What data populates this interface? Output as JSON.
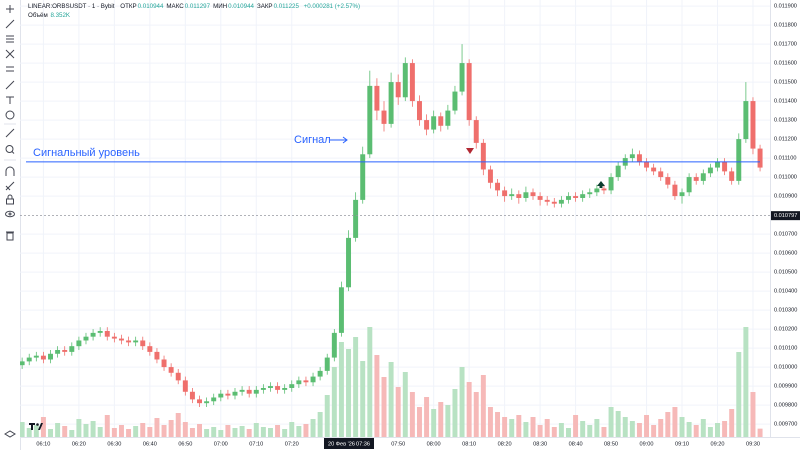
{
  "chart_data": {
    "type": "candlestick",
    "legend": {
      "symbol": "LINEAR:ORBSUSDT · 1 · Bybit",
      "items": [
        {
          "label": "ОТКР",
          "value": 0.010944
        },
        {
          "label": "МАКС",
          "value": 0.011297
        },
        {
          "label": "МИН",
          "value": 0.010944
        },
        {
          "label": "ЗАКР",
          "value": 0.011225
        }
      ],
      "change": "+0.000281 (+2.57%)",
      "volume_label": "Объём",
      "volume_value": "8.352K"
    },
    "annotations": {
      "signal": "Сигнал",
      "level_label": "Сигнальный уровень",
      "level": 0.01108
    },
    "crosshair_date": "20 Фев '26",
    "crosshair_time": "07:36",
    "last_price": 0.010797,
    "up_color": "#5bbd72",
    "down_color": "#ef6f6c",
    "volume_up_color": "#b8e2c3",
    "volume_down_color": "#f6b9b8",
    "level_color": "#2962ff",
    "grid": true,
    "open": [
      0.01001,
      0.01003,
      0.01005,
      0.01006,
      0.01004,
      0.01007,
      0.01009,
      0.01008,
      0.01011,
      0.01014,
      0.01016,
      0.01018,
      0.01019,
      0.01016,
      0.01015,
      0.01014,
      0.01013,
      0.01014,
      0.01011,
      0.01008,
      0.01004,
      0.01,
      0.00997,
      0.00993,
      0.00987,
      0.00983,
      0.00981,
      0.00982,
      0.00984,
      0.00986,
      0.00985,
      0.00987,
      0.00988,
      0.00986,
      0.00988,
      0.00989,
      0.0099,
      0.00988,
      0.00989,
      0.00991,
      0.00993,
      0.00992,
      0.00995,
      0.00998,
      0.01005,
      0.01018,
      0.01042,
      0.01068,
      0.01088,
      0.01112,
      0.01148,
      0.01135,
      0.01128,
      0.0115,
      0.01142,
      0.0116,
      0.0114,
      0.0113,
      0.01125,
      0.01132,
      0.01127,
      0.01135,
      0.01145,
      0.0116,
      0.0113,
      0.01118,
      0.01104,
      0.01097,
      0.01093,
      0.0109,
      0.01091,
      0.01089,
      0.01092,
      0.0109,
      0.01088,
      0.01087,
      0.01086,
      0.01088,
      0.0109,
      0.01089,
      0.01091,
      0.01092,
      0.01094,
      0.01093,
      0.011,
      0.01106,
      0.0111,
      0.01112,
      0.01108,
      0.01105,
      0.01103,
      0.011,
      0.01096,
      0.0109,
      0.01092,
      0.011,
      0.01098,
      0.01102,
      0.01105,
      0.01108,
      0.01103,
      0.01098,
      0.0112,
      0.0114,
      0.01115
    ],
    "high": [
      0.01005,
      0.01007,
      0.01008,
      0.01008,
      0.01009,
      0.01011,
      0.01011,
      0.01013,
      0.01016,
      0.01018,
      0.0102,
      0.01021,
      0.01021,
      0.01018,
      0.01017,
      0.01016,
      0.01016,
      0.01016,
      0.01013,
      0.0101,
      0.01006,
      0.01002,
      0.00999,
      0.00995,
      0.00989,
      0.00985,
      0.00984,
      0.00986,
      0.00988,
      0.00988,
      0.00989,
      0.0099,
      0.0099,
      0.0099,
      0.00991,
      0.00992,
      0.00992,
      0.00991,
      0.00993,
      0.00995,
      0.00995,
      0.00997,
      0.01,
      0.01007,
      0.0102,
      0.01045,
      0.01072,
      0.01092,
      0.01116,
      0.01156,
      0.01152,
      0.0114,
      0.01155,
      0.01154,
      0.01163,
      0.01162,
      0.01143,
      0.01133,
      0.01135,
      0.01134,
      0.01138,
      0.01148,
      0.0117,
      0.01162,
      0.01132,
      0.0112,
      0.01106,
      0.01099,
      0.01095,
      0.01094,
      0.01093,
      0.01095,
      0.01094,
      0.01092,
      0.0109,
      0.01089,
      0.0109,
      0.01092,
      0.01092,
      0.01093,
      0.01094,
      0.01096,
      0.01096,
      0.01102,
      0.01108,
      0.01112,
      0.01115,
      0.01114,
      0.0111,
      0.01107,
      0.01105,
      0.01102,
      0.01098,
      0.01094,
      0.01102,
      0.01102,
      0.01104,
      0.01107,
      0.0111,
      0.0111,
      0.01105,
      0.01123,
      0.0115,
      0.01142,
      0.01117
    ],
    "low": [
      0.00999,
      0.01001,
      0.01003,
      0.01002,
      0.01002,
      0.01005,
      0.01006,
      0.01006,
      0.01009,
      0.01012,
      0.01014,
      0.01016,
      0.01014,
      0.01013,
      0.01012,
      0.01011,
      0.01011,
      0.01009,
      0.01006,
      0.01002,
      0.00998,
      0.00995,
      0.00991,
      0.00985,
      0.00981,
      0.00979,
      0.00979,
      0.0098,
      0.00982,
      0.00983,
      0.00983,
      0.00985,
      0.00984,
      0.00984,
      0.00986,
      0.00987,
      0.00986,
      0.00986,
      0.00987,
      0.00989,
      0.0099,
      0.0099,
      0.00993,
      0.00996,
      0.01003,
      0.01016,
      0.0104,
      0.01066,
      0.01086,
      0.0111,
      0.0113,
      0.01124,
      0.01126,
      0.01138,
      0.0114,
      0.01137,
      0.01127,
      0.01122,
      0.01123,
      0.01124,
      0.01125,
      0.01133,
      0.01143,
      0.01127,
      0.01115,
      0.01101,
      0.01094,
      0.0109,
      0.01087,
      0.01088,
      0.01086,
      0.01087,
      0.01088,
      0.01085,
      0.01085,
      0.01084,
      0.01084,
      0.01086,
      0.01087,
      0.01087,
      0.01089,
      0.0109,
      0.01091,
      0.01091,
      0.01098,
      0.01104,
      0.01108,
      0.01106,
      0.01103,
      0.01101,
      0.01098,
      0.01094,
      0.01088,
      0.01086,
      0.0109,
      0.01096,
      0.01096,
      0.011,
      0.01103,
      0.01101,
      0.01096,
      0.01096,
      0.01118,
      0.01112,
      0.01103
    ],
    "close": [
      0.01003,
      0.01005,
      0.01006,
      0.01004,
      0.01007,
      0.01009,
      0.01008,
      0.01011,
      0.01014,
      0.01016,
      0.01018,
      0.01019,
      0.01016,
      0.01015,
      0.01014,
      0.01013,
      0.01014,
      0.01011,
      0.01008,
      0.01004,
      0.01,
      0.00997,
      0.00993,
      0.00987,
      0.00983,
      0.00981,
      0.00982,
      0.00984,
      0.00986,
      0.00985,
      0.00987,
      0.00988,
      0.00986,
      0.00988,
      0.00989,
      0.0099,
      0.00988,
      0.00989,
      0.00991,
      0.00993,
      0.00992,
      0.00995,
      0.00998,
      0.01005,
      0.01018,
      0.01042,
      0.01068,
      0.01088,
      0.01112,
      0.01148,
      0.01135,
      0.01128,
      0.0115,
      0.01142,
      0.0116,
      0.0114,
      0.0113,
      0.01125,
      0.01132,
      0.01127,
      0.01135,
      0.01145,
      0.0116,
      0.0113,
      0.01118,
      0.01104,
      0.01097,
      0.01093,
      0.0109,
      0.01091,
      0.01089,
      0.01092,
      0.0109,
      0.01088,
      0.01087,
      0.01086,
      0.01088,
      0.0109,
      0.01089,
      0.01091,
      0.01092,
      0.01094,
      0.01093,
      0.011,
      0.01106,
      0.0111,
      0.01112,
      0.01108,
      0.01105,
      0.01103,
      0.011,
      0.01096,
      0.0109,
      0.01092,
      0.011,
      0.01098,
      0.01102,
      0.01105,
      0.01108,
      0.01103,
      0.01098,
      0.0112,
      0.0114,
      0.01115,
      0.01105
    ],
    "volume": [
      15000,
      9000,
      12000,
      20000,
      8000,
      14000,
      11000,
      7000,
      18000,
      13000,
      16000,
      10000,
      22000,
      9000,
      12000,
      8000,
      11000,
      14000,
      10000,
      19000,
      12000,
      17000,
      24000,
      15000,
      9000,
      13000,
      8000,
      10000,
      7000,
      12000,
      9000,
      11000,
      8000,
      14000,
      10000,
      9000,
      12000,
      8000,
      15000,
      11000,
      13000,
      18000,
      25000,
      42000,
      70000,
      95000,
      88000,
      100000,
      76000,
      110000,
      82000,
      60000,
      75000,
      50000,
      65000,
      45000,
      30000,
      40000,
      28000,
      35000,
      32000,
      48000,
      70000,
      55000,
      45000,
      62000,
      30000,
      25000,
      20000,
      18000,
      22000,
      15000,
      20000,
      12000,
      18000,
      10000,
      14000,
      9000,
      22000,
      16000,
      12000,
      18000,
      10000,
      30000,
      26000,
      20000,
      16000,
      14000,
      22000,
      12000,
      18000,
      25000,
      30000,
      20000,
      15000,
      12000,
      18000,
      10000,
      14000,
      16000,
      28000,
      85000,
      110000,
      45000,
      8352
    ],
    "xlim": [
      -0.3,
      105.4
    ],
    "xticks": [
      {
        "value": 3,
        "label": "06:10"
      },
      {
        "value": 8,
        "label": "06:20"
      },
      {
        "value": 13,
        "label": "06:30"
      },
      {
        "value": 18,
        "label": "06:40"
      },
      {
        "value": 23,
        "label": "06:50"
      },
      {
        "value": 28,
        "label": "07:00"
      },
      {
        "value": 33,
        "label": "07:10"
      },
      {
        "value": 38,
        "label": "07:20"
      },
      {
        "value": 53,
        "label": "07:50"
      },
      {
        "value": 58,
        "label": "08:00"
      },
      {
        "value": 63,
        "label": "08:10"
      },
      {
        "value": 68,
        "label": "08:20"
      },
      {
        "value": 73,
        "label": "08:30"
      },
      {
        "value": 78,
        "label": "08:40"
      },
      {
        "value": 83,
        "label": "08:50"
      },
      {
        "value": 88,
        "label": "09:00"
      },
      {
        "value": 93,
        "label": "09:10"
      },
      {
        "value": 98,
        "label": "09:20"
      },
      {
        "value": 103,
        "label": "09:30"
      }
    ],
    "ylim": [
      0.009632,
      0.011932
    ],
    "yticks": [
      {
        "value": 0.0097,
        "label": "0.009700"
      },
      {
        "value": 0.0098,
        "label": "0.009800"
      },
      {
        "value": 0.0099,
        "label": "0.009900"
      },
      {
        "value": 0.01,
        "label": "0.010000"
      },
      {
        "value": 0.0101,
        "label": "0.010100"
      },
      {
        "value": 0.0102,
        "label": "0.010200"
      },
      {
        "value": 0.0103,
        "label": "0.010300"
      },
      {
        "value": 0.0104,
        "label": "0.010400"
      },
      {
        "value": 0.0105,
        "label": "0.010500"
      },
      {
        "value": 0.0106,
        "label": "0.010600"
      },
      {
        "value": 0.0107,
        "label": "0.010700"
      },
      {
        "value": 0.0109,
        "label": "0.010900"
      },
      {
        "value": 0.011,
        "label": "0.011000"
      },
      {
        "value": 0.0111,
        "label": "0.011100"
      },
      {
        "value": 0.0112,
        "label": "0.011200"
      },
      {
        "value": 0.0113,
        "label": "0.011300"
      },
      {
        "value": 0.0114,
        "label": "0.011400"
      },
      {
        "value": 0.0115,
        "label": "0.011500"
      },
      {
        "value": 0.0116,
        "label": "0.011600"
      },
      {
        "value": 0.0117,
        "label": "0.011700"
      },
      {
        "value": 0.0118,
        "label": "0.011800"
      },
      {
        "value": 0.0119,
        "label": "0.011900"
      }
    ]
  }
}
